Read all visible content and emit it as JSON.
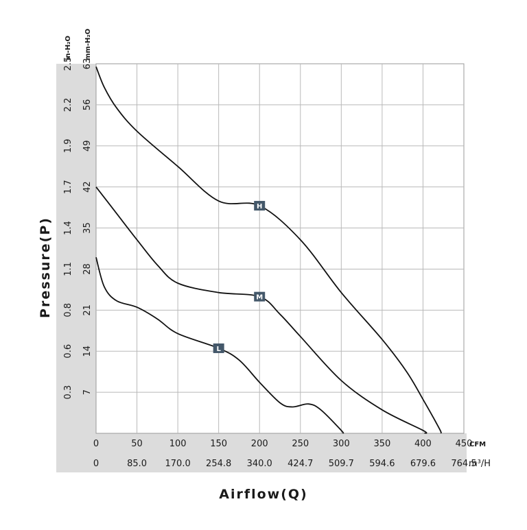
{
  "chart_data": {
    "type": "line",
    "xlabel": "Airflow(Q)",
    "ylabel": "Pressure(P)",
    "x_unit_primary": "CFM",
    "x_unit_secondary": "m³/H",
    "y_unit_primary": "mm-H₂O",
    "y_unit_secondary": "in-H₂O",
    "xlim": [
      0,
      450
    ],
    "ylim": [
      0,
      63
    ],
    "grid": true,
    "x_ticks_cfm": [
      "0",
      "50",
      "100",
      "150",
      "200",
      "250",
      "300",
      "350",
      "400",
      "450"
    ],
    "x_ticks_m3h": [
      "0",
      "85.0",
      "170.0",
      "254.8",
      "340.0",
      "424.7",
      "509.7",
      "594.6",
      "679.6",
      "764.5"
    ],
    "y_ticks_mm": [
      "7",
      "14",
      "21",
      "28",
      "35",
      "42",
      "49",
      "56",
      "63"
    ],
    "y_ticks_in": [
      "0.3",
      "0.6",
      "0.8",
      "1.1",
      "1.4",
      "1.7",
      "1.9",
      "2.2",
      "2.5"
    ],
    "series": [
      {
        "name": "H",
        "marker_at": [
          200,
          38.8
        ],
        "points": [
          [
            0,
            62.5
          ],
          [
            10,
            59
          ],
          [
            25,
            55.5
          ],
          [
            50,
            51.5
          ],
          [
            100,
            45.5
          ],
          [
            150,
            39.6
          ],
          [
            200,
            38.8
          ],
          [
            250,
            33
          ],
          [
            300,
            24
          ],
          [
            350,
            16
          ],
          [
            380,
            10.5
          ],
          [
            400,
            5.8
          ],
          [
            420,
            0.8
          ],
          [
            422,
            0
          ]
        ]
      },
      {
        "name": "M",
        "marker_at": [
          200,
          23.3
        ],
        "points": [
          [
            0,
            42
          ],
          [
            25,
            37.5
          ],
          [
            50,
            33
          ],
          [
            75,
            28.7
          ],
          [
            100,
            25.6
          ],
          [
            150,
            24
          ],
          [
            200,
            23.3
          ],
          [
            225,
            20.3
          ],
          [
            250,
            16.5
          ],
          [
            300,
            9
          ],
          [
            350,
            4
          ],
          [
            400,
            0.5
          ],
          [
            402,
            0
          ]
        ]
      },
      {
        "name": "L",
        "marker_at": [
          150,
          14.5
        ],
        "points": [
          [
            0,
            30
          ],
          [
            10,
            25
          ],
          [
            25,
            22.6
          ],
          [
            50,
            21.5
          ],
          [
            75,
            19.5
          ],
          [
            100,
            17
          ],
          [
            150,
            14.5
          ],
          [
            175,
            12.5
          ],
          [
            200,
            8.7
          ],
          [
            225,
            5.2
          ],
          [
            240,
            4.5
          ],
          [
            260,
            5
          ],
          [
            275,
            4
          ],
          [
            300,
            0.5
          ],
          [
            302,
            0
          ]
        ]
      }
    ]
  }
}
